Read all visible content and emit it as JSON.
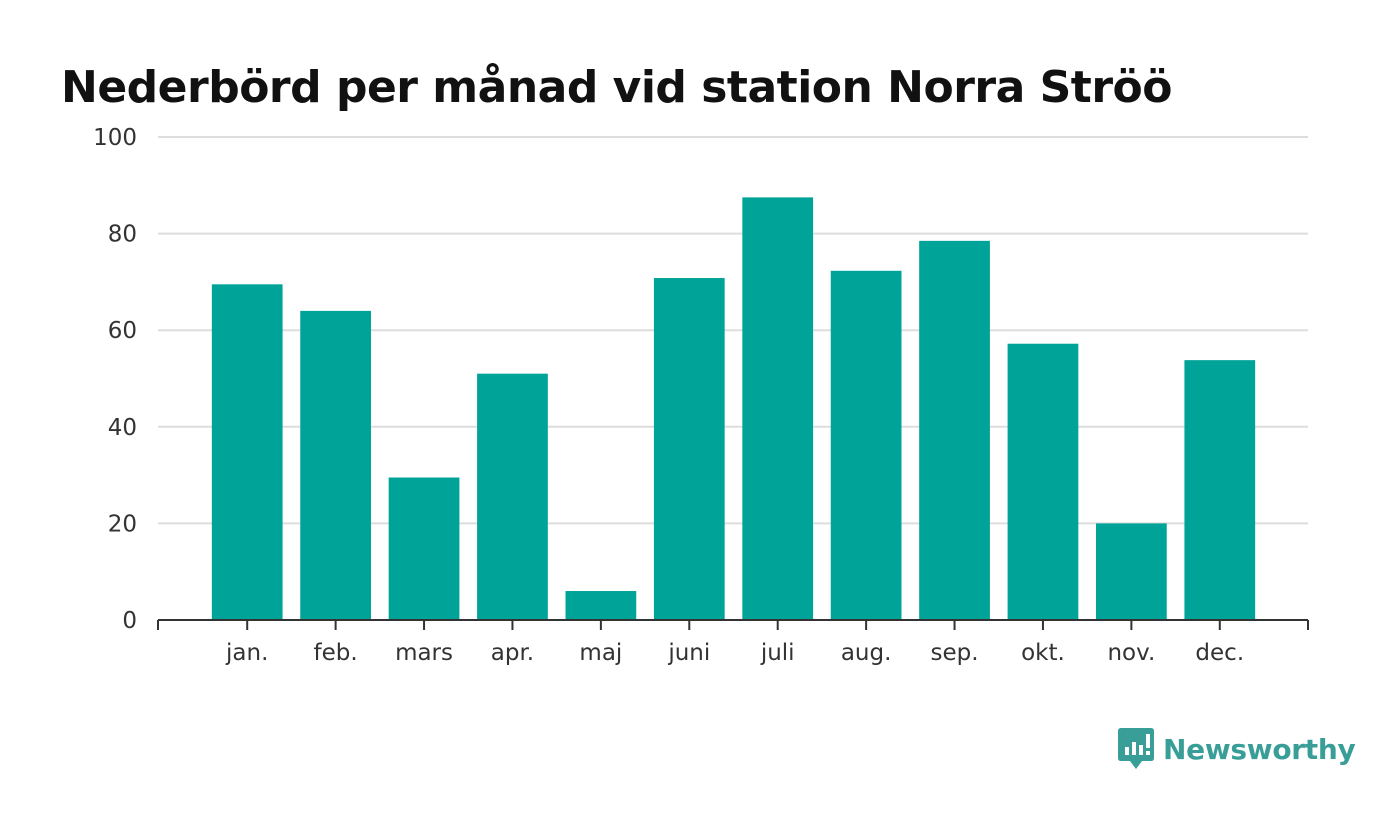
{
  "chart_data": {
    "type": "bar",
    "title": "Nederbörd per månad vid station Norra Ströö",
    "xlabel": "",
    "ylabel": "",
    "categories": [
      "jan.",
      "feb.",
      "mars",
      "apr.",
      "maj",
      "juni",
      "juli",
      "aug.",
      "sep.",
      "okt.",
      "nov.",
      "dec."
    ],
    "values": [
      69.5,
      64,
      29.5,
      51,
      6,
      70.8,
      87.5,
      72.3,
      78.5,
      57.2,
      20,
      53.8
    ],
    "ylim": [
      0,
      100
    ],
    "yticks": [
      "0",
      "20",
      "40",
      "60",
      "80",
      "100"
    ],
    "grid": true,
    "bar_color": "#00a398"
  },
  "brand": {
    "name": "Newsworthy",
    "color": "#3a9e98",
    "icon": "newsworthy-logo-icon"
  }
}
